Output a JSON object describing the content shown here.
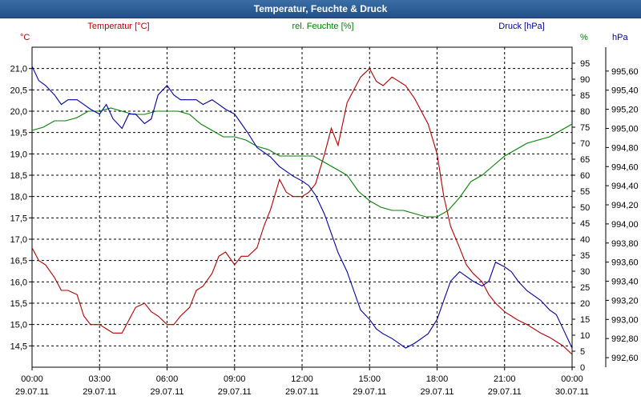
{
  "window": {
    "title": "Temperatur, Feuchte & Druck"
  },
  "chart_data": {
    "type": "line",
    "title": "Temperatur, Feuchte & Druck",
    "grid": true,
    "x_ticks": [
      {
        "time": "00:00",
        "date": "29.07.11"
      },
      {
        "time": "03:00",
        "date": "29.07.11"
      },
      {
        "time": "06:00",
        "date": "29.07.11"
      },
      {
        "time": "09:00",
        "date": "29.07.11"
      },
      {
        "time": "12:00",
        "date": "29.07.11"
      },
      {
        "time": "15:00",
        "date": "29.07.11"
      },
      {
        "time": "18:00",
        "date": "29.07.11"
      },
      {
        "time": "21:00",
        "date": "29.07.11"
      },
      {
        "time": "00:00",
        "date": "30.07.11"
      }
    ],
    "x_range_hours": [
      0,
      24
    ],
    "axes": {
      "temperature": {
        "unit": "°C",
        "ylim": [
          14,
          21.5
        ],
        "ticks": [
          "14,5",
          "15,0",
          "15,5",
          "16,0",
          "16,5",
          "17,0",
          "17,5",
          "18,0",
          "18,5",
          "19,0",
          "19,5",
          "20,0",
          "20,5",
          "21,0"
        ],
        "tick_values": [
          14.5,
          15,
          15.5,
          16,
          16.5,
          17,
          17.5,
          18,
          18.5,
          19,
          19.5,
          20,
          20.5,
          21
        ],
        "color": "#b00000"
      },
      "humidity": {
        "unit": "%",
        "ylim": [
          0,
          100
        ],
        "ticks": [
          "0",
          "5",
          "10",
          "15",
          "20",
          "25",
          "30",
          "35",
          "40",
          "45",
          "50",
          "55",
          "60",
          "65",
          "70",
          "75",
          "80",
          "85",
          "90",
          "95"
        ],
        "tick_values": [
          0,
          5,
          10,
          15,
          20,
          25,
          30,
          35,
          40,
          45,
          50,
          55,
          60,
          65,
          70,
          75,
          80,
          85,
          90,
          95
        ],
        "color": "#008000"
      },
      "pressure": {
        "unit": "hPa",
        "ylim": [
          992.5,
          995.85
        ],
        "ticks": [
          "992,60",
          "992,80",
          "993,00",
          "993,20",
          "993,40",
          "993,60",
          "993,80",
          "994,00",
          "994,20",
          "994,40",
          "994,60",
          "994,80",
          "995,00",
          "995,20",
          "995,40",
          "995,60"
        ],
        "tick_values": [
          992.6,
          992.8,
          993.0,
          993.2,
          993.4,
          993.6,
          993.8,
          994.0,
          994.2,
          994.4,
          994.6,
          994.8,
          995.0,
          995.2,
          995.4,
          995.6
        ],
        "color": "#0000a0"
      }
    },
    "series": [
      {
        "name": "Temperatur [°C]",
        "axis": "temperature",
        "color": "#b00000",
        "x": [
          0,
          0.3,
          0.6,
          1,
          1.3,
          1.6,
          2,
          2.3,
          2.6,
          3,
          3.3,
          3.6,
          4,
          4.3,
          4.6,
          5,
          5.3,
          5.6,
          6,
          6.3,
          6.6,
          7,
          7.3,
          7.6,
          8,
          8.3,
          8.6,
          9,
          9.3,
          9.6,
          10,
          10.3,
          10.6,
          11,
          11.3,
          11.6,
          12,
          12.3,
          12.6,
          13,
          13.3,
          13.6,
          14,
          14.3,
          14.6,
          15,
          15.3,
          15.6,
          16,
          16.3,
          16.6,
          17,
          17.3,
          17.6,
          18,
          18.3,
          18.6,
          19,
          19.3,
          19.6,
          20,
          20.3,
          20.6,
          21,
          21.3,
          21.6,
          22,
          22.3,
          22.6,
          23,
          23.3,
          23.6,
          24
        ],
        "values": [
          16.8,
          16.5,
          16.4,
          16.1,
          15.8,
          15.8,
          15.7,
          15.2,
          15.0,
          15.0,
          14.9,
          14.8,
          14.8,
          15.1,
          15.4,
          15.5,
          15.3,
          15.2,
          15.0,
          15.0,
          15.2,
          15.4,
          15.8,
          15.9,
          16.2,
          16.6,
          16.7,
          16.4,
          16.6,
          16.6,
          16.8,
          17.3,
          17.7,
          18.4,
          18.1,
          18.0,
          18.0,
          18.1,
          18.3,
          19.0,
          19.6,
          19.2,
          20.2,
          20.5,
          20.8,
          21.0,
          20.7,
          20.6,
          20.8,
          20.7,
          20.6,
          20.3,
          20.0,
          19.7,
          19.0,
          18.0,
          17.3,
          16.8,
          16.4,
          16.2,
          16.0,
          15.7,
          15.5,
          15.3,
          15.2,
          15.1,
          15.0,
          14.9,
          14.8,
          14.7,
          14.6,
          14.5,
          14.3
        ]
      },
      {
        "name": "rel. Feuchte [%]",
        "axis": "humidity",
        "color": "#008000",
        "x": [
          0,
          0.5,
          1,
          1.5,
          2,
          2.5,
          3,
          3.5,
          4,
          4.5,
          5,
          5.5,
          6,
          6.5,
          7,
          7.5,
          8,
          8.5,
          9,
          9.5,
          10,
          10.5,
          11,
          11.5,
          12,
          12.5,
          13,
          13.5,
          14,
          14.5,
          15,
          15.5,
          16,
          16.5,
          17,
          17.5,
          18,
          18.5,
          19,
          19.5,
          20,
          20.5,
          21,
          21.5,
          22,
          22.5,
          23,
          23.5,
          24
        ],
        "values": [
          74,
          75,
          77,
          77,
          78,
          80,
          80,
          81,
          80,
          79,
          79,
          80,
          80,
          80,
          79,
          76,
          74,
          72,
          72,
          71,
          69,
          68,
          66,
          66,
          66,
          66,
          64,
          62,
          60,
          55,
          52,
          50,
          49,
          49,
          48,
          47,
          47,
          49,
          53,
          58,
          60,
          63,
          66,
          68,
          70,
          71,
          72,
          74,
          76
        ]
      },
      {
        "name": "Druck [hPa]",
        "axis": "pressure",
        "color": "#0000a0",
        "x": [
          0,
          0.3,
          0.6,
          1,
          1.3,
          1.6,
          2,
          2.3,
          2.6,
          3,
          3.3,
          3.6,
          4,
          4.3,
          4.6,
          5,
          5.3,
          5.6,
          6,
          6.3,
          6.6,
          7,
          7.3,
          7.6,
          8,
          8.3,
          8.6,
          9,
          9.3,
          9.6,
          10,
          10.3,
          10.6,
          11,
          11.3,
          11.6,
          12,
          12.3,
          12.6,
          13,
          13.3,
          13.6,
          14,
          14.3,
          14.6,
          15,
          15.3,
          15.6,
          16,
          16.3,
          16.6,
          17,
          17.3,
          17.6,
          18,
          18.3,
          18.6,
          19,
          19.3,
          19.6,
          20,
          20.3,
          20.6,
          21,
          21.3,
          21.6,
          22,
          22.3,
          22.6,
          23,
          23.3,
          23.6,
          24
        ],
        "values": [
          995.65,
          995.5,
          995.45,
          995.35,
          995.25,
          995.3,
          995.3,
          995.25,
          995.2,
          995.15,
          995.25,
          995.1,
          995.0,
          995.15,
          995.15,
          995.05,
          995.1,
          995.35,
          995.45,
          995.35,
          995.3,
          995.3,
          995.3,
          995.25,
          995.3,
          995.25,
          995.2,
          995.15,
          995.05,
          994.95,
          994.8,
          994.75,
          994.7,
          994.6,
          994.55,
          994.5,
          994.45,
          994.4,
          994.3,
          994.1,
          993.9,
          993.7,
          993.5,
          993.3,
          993.1,
          993.0,
          992.9,
          992.85,
          992.8,
          992.75,
          992.7,
          992.75,
          992.8,
          992.85,
          993.0,
          993.2,
          993.4,
          993.5,
          993.45,
          993.4,
          993.35,
          993.4,
          993.6,
          993.55,
          993.5,
          993.4,
          993.3,
          993.25,
          993.2,
          993.1,
          993.05,
          992.9,
          992.7
        ]
      }
    ]
  }
}
